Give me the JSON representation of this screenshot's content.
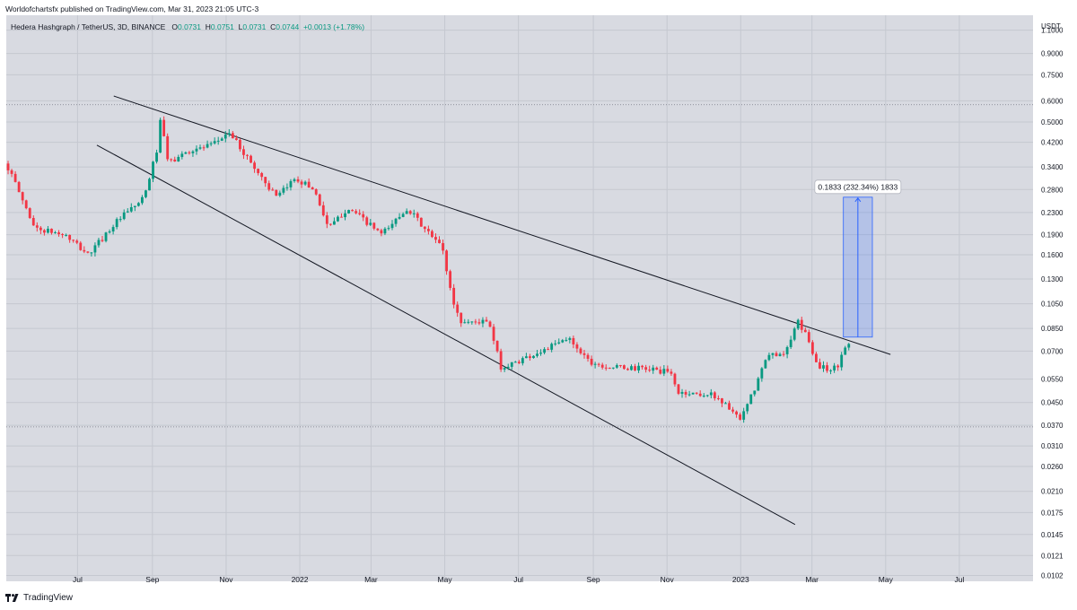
{
  "header": {
    "publisher": "Worldofchartsfx published on TradingView.com, Mar 31, 2023 21:05 UTC-3",
    "symbol": "Hedera Hashgraph / TetherUS, 3D, BINANCE",
    "ohlc": {
      "o_label": "O",
      "o_value": "0.0731",
      "h_label": "H",
      "h_value": "0.0751",
      "l_label": "L",
      "l_value": "0.0731",
      "c_label": "C",
      "c_value": "0.0744",
      "change": "+0.0013 (+1.78%)"
    }
  },
  "footer": {
    "brand": "TradingView"
  },
  "chart_data": {
    "type": "candlestick",
    "y_scale": "log",
    "y_unit": "USDT",
    "y_ticks": [
      1.1,
      0.9,
      0.75,
      0.6,
      0.5,
      0.42,
      0.34,
      0.28,
      0.23,
      0.19,
      0.16,
      0.13,
      0.105,
      0.085,
      0.07,
      0.055,
      0.045,
      0.037,
      0.031,
      0.026,
      0.021,
      0.0175,
      0.0145,
      0.0121,
      0.0102
    ],
    "y_tick_labels": [
      "1.1000",
      "0.9000",
      "0.7500",
      "0.6000",
      "0.5000",
      "0.4200",
      "0.3400",
      "0.2800",
      "0.2300",
      "0.1900",
      "0.1600",
      "0.1300",
      "0.1050",
      "0.0850",
      "0.0700",
      "0.0550",
      "0.0450",
      "0.0370",
      "0.0310",
      "0.0260",
      "0.0210",
      "0.0175",
      "0.0145",
      "0.0121",
      "0.0102"
    ],
    "x_ticks": [
      "2021-07-01",
      "2021-09-01",
      "2021-11-01",
      "2022-01-01",
      "2022-03-01",
      "2022-05-01",
      "2022-07-01",
      "2022-09-01",
      "2022-11-01",
      "2023-01-01",
      "2023-03-01",
      "2023-05-01",
      "2023-07-01"
    ],
    "x_tick_labels": [
      "Jul",
      "Sep",
      "Nov",
      "2022",
      "Mar",
      "May",
      "Jul",
      "Sep",
      "Nov",
      "2023",
      "Mar",
      "May",
      "Jul"
    ],
    "x_range": [
      "2021-05-03",
      "2023-08-31"
    ],
    "y_range": [
      0.0097,
      1.25
    ],
    "colors": {
      "up": "#089981",
      "down": "#f23645",
      "line": "#131722",
      "measure": "#2962ff"
    },
    "price_anchors": [
      [
        "2021-05-03",
        0.35
      ],
      [
        "2021-05-27",
        0.2
      ],
      [
        "2021-06-20",
        0.19
      ],
      [
        "2021-07-10",
        0.16
      ],
      [
        "2021-08-01",
        0.21
      ],
      [
        "2021-08-25",
        0.26
      ],
      [
        "2021-09-05",
        0.4
      ],
      [
        "2021-09-08",
        0.52
      ],
      [
        "2021-09-14",
        0.35
      ],
      [
        "2021-10-01",
        0.39
      ],
      [
        "2021-10-21",
        0.41
      ],
      [
        "2021-11-03",
        0.46
      ],
      [
        "2021-11-22",
        0.35
      ],
      [
        "2021-12-13",
        0.26
      ],
      [
        "2021-12-28",
        0.31
      ],
      [
        "2022-01-13",
        0.28
      ],
      [
        "2022-01-25",
        0.2
      ],
      [
        "2022-02-10",
        0.24
      ],
      [
        "2022-03-10",
        0.19
      ],
      [
        "2022-03-31",
        0.24
      ],
      [
        "2022-04-14",
        0.2
      ],
      [
        "2022-04-29",
        0.17
      ],
      [
        "2022-05-07",
        0.11
      ],
      [
        "2022-05-14",
        0.09
      ],
      [
        "2022-06-06",
        0.09
      ],
      [
        "2022-06-17",
        0.06
      ],
      [
        "2022-07-03",
        0.065
      ],
      [
        "2022-07-20",
        0.07
      ],
      [
        "2022-08-12",
        0.078
      ],
      [
        "2022-08-29",
        0.064
      ],
      [
        "2022-09-14",
        0.061
      ],
      [
        "2022-10-18",
        0.06
      ],
      [
        "2022-11-04",
        0.058
      ],
      [
        "2022-11-10",
        0.049
      ],
      [
        "2022-12-10",
        0.048
      ],
      [
        "2022-12-25",
        0.042
      ],
      [
        "2022-12-31",
        0.038
      ],
      [
        "2023-01-12",
        0.05
      ],
      [
        "2023-01-23",
        0.067
      ],
      [
        "2023-02-08",
        0.07
      ],
      [
        "2023-02-17",
        0.09
      ],
      [
        "2023-02-26",
        0.078
      ],
      [
        "2023-03-05",
        0.062
      ],
      [
        "2023-03-14",
        0.06
      ],
      [
        "2023-03-23",
        0.061
      ],
      [
        "2023-03-26",
        0.07
      ],
      [
        "2023-03-31",
        0.0744
      ]
    ],
    "trendlines": [
      {
        "name": "upper",
        "from": [
          "2021-07-31",
          0.625
        ],
        "to": [
          "2023-05-05",
          0.068
        ]
      },
      {
        "name": "lower",
        "from": [
          "2021-07-17",
          0.41
        ],
        "to": [
          "2023-02-15",
          0.0158
        ]
      }
    ],
    "horizontal_lines": [
      0.58,
      0.0365
    ],
    "measure": {
      "label": "0.1833 (232.34%) 1833",
      "from_date": "2023-03-27",
      "to_date": "2023-04-20",
      "low": 0.0789,
      "high": 0.2622
    }
  }
}
